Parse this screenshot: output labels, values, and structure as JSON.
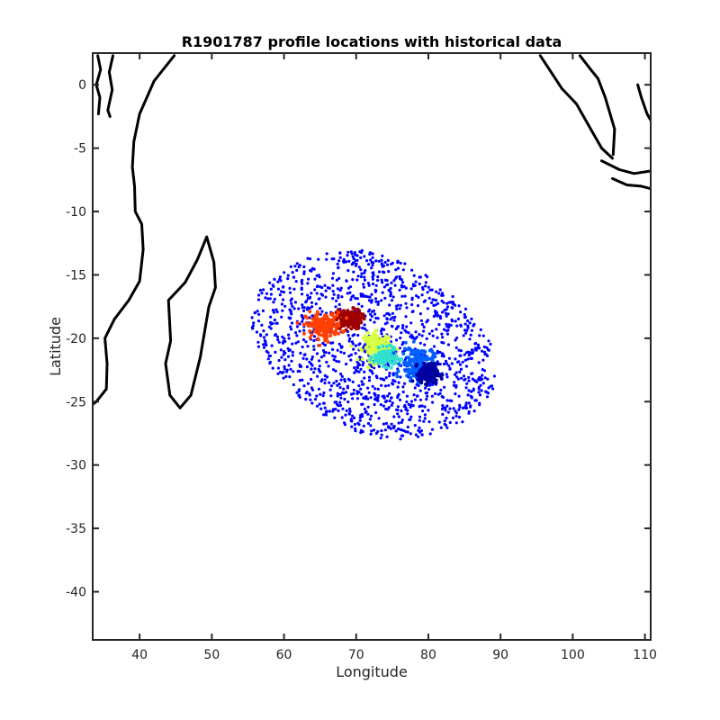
{
  "chart_data": {
    "type": "scatter",
    "title": "R1901787 profile locations with historical data",
    "xlabel": "Longitude",
    "ylabel": "Latitude",
    "xlim": [
      33.5,
      110.8
    ],
    "ylim": [
      -43.8,
      2.5
    ],
    "xticks": [
      40,
      50,
      60,
      70,
      80,
      90,
      100,
      110
    ],
    "yticks": [
      0,
      -5,
      -10,
      -15,
      -20,
      -25,
      -30,
      -35,
      -40
    ],
    "xtick_labels": [
      "40",
      "50",
      "60",
      "70",
      "80",
      "90",
      "100",
      "110"
    ],
    "ytick_labels": [
      "0",
      "-5",
      "-10",
      "-15",
      "-20",
      "-25",
      "-30",
      "-35",
      "-40"
    ],
    "grid": false,
    "legend": "none",
    "historical_color": "#0000ff",
    "historical_region": {
      "center": [
        72.5,
        -20.5
      ],
      "radius_lon": 17,
      "radius_lat": 7.3
    },
    "profile_color_map": "jet",
    "profile_clusters": [
      {
        "center": [
          69.0,
          -18.5
        ],
        "spread": [
          1.6,
          0.7
        ],
        "color": "#a00000"
      },
      {
        "center": [
          65.5,
          -19.0
        ],
        "spread": [
          2.2,
          0.9
        ],
        "color": "#ff4000"
      },
      {
        "center": [
          73.0,
          -20.7
        ],
        "spread": [
          1.8,
          1.0
        ],
        "color": "#d8ff40"
      },
      {
        "center": [
          74.0,
          -21.5
        ],
        "spread": [
          1.4,
          0.6
        ],
        "color": "#30e0d0"
      },
      {
        "center": [
          78.5,
          -22.0
        ],
        "spread": [
          2.0,
          1.2
        ],
        "color": "#0060ff"
      },
      {
        "center": [
          80.0,
          -22.8
        ],
        "spread": [
          1.2,
          0.7
        ],
        "color": "#0000a0"
      }
    ],
    "coastlines": [
      [
        [
          34.2,
          2.3
        ],
        [
          34.6,
          1.2
        ],
        [
          34.0,
          0.0
        ],
        [
          34.5,
          -1.0
        ],
        [
          34.3,
          -2.3
        ]
      ],
      [
        [
          36.3,
          2.3
        ],
        [
          35.8,
          1.0
        ],
        [
          36.2,
          -0.4
        ],
        [
          35.6,
          -2.0
        ],
        [
          35.9,
          -2.5
        ]
      ],
      [
        [
          44.8,
          2.3
        ],
        [
          42.0,
          0.3
        ],
        [
          40.0,
          -2.3
        ],
        [
          39.2,
          -4.5
        ],
        [
          39.0,
          -6.5
        ],
        [
          39.3,
          -8.0
        ],
        [
          39.4,
          -10.0
        ],
        [
          40.3,
          -11.0
        ],
        [
          40.5,
          -13.0
        ],
        [
          40.0,
          -15.5
        ],
        [
          38.5,
          -17.0
        ],
        [
          36.5,
          -18.5
        ],
        [
          35.2,
          -20.0
        ],
        [
          35.5,
          -22.0
        ],
        [
          35.4,
          -24.0
        ],
        [
          34.0,
          -25.0
        ],
        [
          33.5,
          -25.2
        ]
      ],
      [
        [
          49.3,
          -12.0
        ],
        [
          50.3,
          -14.0
        ],
        [
          50.5,
          -16.0
        ],
        [
          49.6,
          -17.5
        ],
        [
          48.4,
          -21.5
        ],
        [
          47.1,
          -24.5
        ],
        [
          45.6,
          -25.5
        ],
        [
          44.2,
          -24.5
        ],
        [
          43.6,
          -22.0
        ],
        [
          44.3,
          -20.2
        ],
        [
          44.0,
          -17.0
        ],
        [
          46.3,
          -15.6
        ],
        [
          48.0,
          -13.8
        ],
        [
          49.3,
          -12.0
        ]
      ],
      [
        [
          95.5,
          2.3
        ],
        [
          97.0,
          1.0
        ],
        [
          98.5,
          -0.3
        ],
        [
          100.5,
          -1.5
        ],
        [
          102.5,
          -3.5
        ],
        [
          104.0,
          -5.0
        ],
        [
          105.5,
          -5.8
        ]
      ],
      [
        [
          101.0,
          2.3
        ],
        [
          102.5,
          1.2
        ],
        [
          103.5,
          0.5
        ],
        [
          104.5,
          -1.0
        ],
        [
          105.8,
          -3.5
        ],
        [
          105.6,
          -5.5
        ]
      ],
      [
        [
          104.0,
          -6.0
        ],
        [
          106.5,
          -6.7
        ],
        [
          108.5,
          -7.0
        ],
        [
          110.8,
          -6.8
        ]
      ],
      [
        [
          105.5,
          -7.4
        ],
        [
          107.5,
          -7.9
        ],
        [
          109.5,
          -8.0
        ],
        [
          110.8,
          -8.2
        ]
      ],
      [
        [
          109.0,
          0.0
        ],
        [
          109.5,
          -1.0
        ],
        [
          110.3,
          -2.3
        ],
        [
          110.8,
          -2.8
        ]
      ]
    ]
  }
}
